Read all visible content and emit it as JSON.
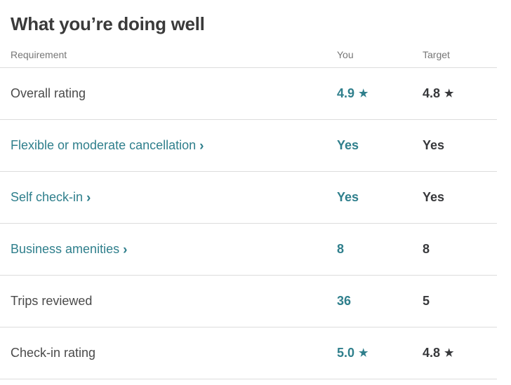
{
  "page": {
    "title": "What you’re doing well"
  },
  "table": {
    "headers": {
      "requirement": "Requirement",
      "you": "You",
      "target": "Target"
    },
    "rows": [
      {
        "label": "Overall rating",
        "link": false,
        "you": "4.9",
        "target": "4.8",
        "star": true
      },
      {
        "label": "Flexible or moderate cancellation",
        "link": true,
        "you": "Yes",
        "target": "Yes",
        "star": false
      },
      {
        "label": "Self check-in",
        "link": true,
        "you": "Yes",
        "target": "Yes",
        "star": false
      },
      {
        "label": "Business amenities",
        "link": true,
        "you": "8",
        "target": "8",
        "star": false
      },
      {
        "label": "Trips reviewed",
        "link": false,
        "you": "36",
        "target": "5",
        "star": false
      },
      {
        "label": "Check-in rating",
        "link": false,
        "you": "5.0",
        "target": "4.8",
        "star": true
      }
    ]
  },
  "icons": {
    "star": "★",
    "chevron_right": "›"
  },
  "colors": {
    "teal": "#2f7f8c",
    "dark": "#37383b",
    "label": "#4a4a4a",
    "header_gray": "#767676",
    "divider": "#dcdcdc"
  }
}
